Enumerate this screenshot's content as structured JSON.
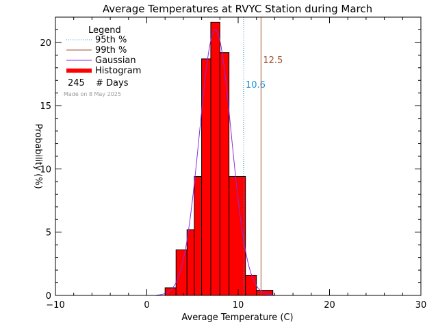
{
  "chart_data": {
    "type": "bar",
    "title": "Average Temperatures at RVYC Station during March",
    "xlabel": "Average Temperature (C)",
    "ylabel": "Probability (%)",
    "xlim": [
      -10,
      30
    ],
    "ylim": [
      0,
      22
    ],
    "xticks": [
      -10,
      0,
      10,
      20,
      30
    ],
    "yticks": [
      0,
      5,
      10,
      15,
      20
    ],
    "bin_width": 1.2,
    "bins": [
      {
        "x0": 2.0,
        "x1": 3.2,
        "value": 0.6
      },
      {
        "x0": 3.2,
        "x1": 4.4,
        "value": 3.6
      },
      {
        "x0": 4.4,
        "x1": 5.2,
        "value": 5.2
      },
      {
        "x0": 5.2,
        "x1": 6.0,
        "value": 9.4
      },
      {
        "x0": 6.0,
        "x1": 7.0,
        "value": 18.7
      },
      {
        "x0": 7.0,
        "x1": 8.0,
        "value": 21.6
      },
      {
        "x0": 8.0,
        "x1": 9.0,
        "value": 19.2
      },
      {
        "x0": 9.0,
        "x1": 10.8,
        "value": 9.4
      },
      {
        "x0": 10.8,
        "x1": 12.0,
        "value": 1.6
      },
      {
        "x0": 12.0,
        "x1": 13.8,
        "value": 0.4
      }
    ],
    "gaussian": {
      "mean": 7.5,
      "sd": 1.75,
      "peak": 21.0
    },
    "percentiles": [
      {
        "name": "95th %",
        "value": 10.6,
        "label": "10.6",
        "color": "#1e8fd6",
        "style": "dotted"
      },
      {
        "name": "99th %",
        "value": 12.5,
        "label": "12.5",
        "color": "#a0522d",
        "style": "solid"
      }
    ],
    "legend": {
      "title": "Legend",
      "placement": "top-left",
      "items": [
        {
          "label": "95th %",
          "color": "#1e8fd6",
          "style": "dotted"
        },
        {
          "label": "99th %",
          "color": "#a0522d",
          "style": "solid"
        },
        {
          "label": "Gaussian",
          "color": "#8a2be2",
          "style": "solid"
        },
        {
          "label": "Histogram",
          "color": "#ff0000",
          "style": "thick"
        }
      ],
      "days_count": "245",
      "days_label": "# Days"
    },
    "made_on": "Made on 8 May 2025",
    "colors": {
      "histogram": "#ff0000",
      "gaussian": "#8a2be2"
    }
  }
}
